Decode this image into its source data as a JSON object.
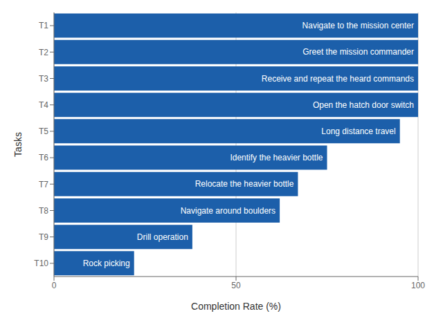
{
  "chart_data": {
    "type": "bar",
    "orientation": "horizontal",
    "categories": [
      "T1",
      "T2",
      "T3",
      "T4",
      "T5",
      "T6",
      "T7",
      "T8",
      "T9",
      "T10"
    ],
    "values": [
      100,
      100,
      100,
      100,
      95,
      75,
      67,
      62,
      38,
      22
    ],
    "annotations": [
      "Navigate to the mission center",
      "Greet the mission commander",
      "Receive and repeat the heard commands",
      "Open the hatch door switch",
      "Long distance travel",
      "Identify the heavier bottle",
      "Relocate the heavier bottle",
      "Navigate around boulders",
      "Drill operation",
      "Rock picking"
    ],
    "color": "#1c5faa",
    "xlabel": "Completion Rate (%)",
    "ylabel": "Tasks",
    "xlim": [
      0,
      100
    ],
    "xticks": [
      0,
      50,
      100
    ],
    "grid": true
  }
}
